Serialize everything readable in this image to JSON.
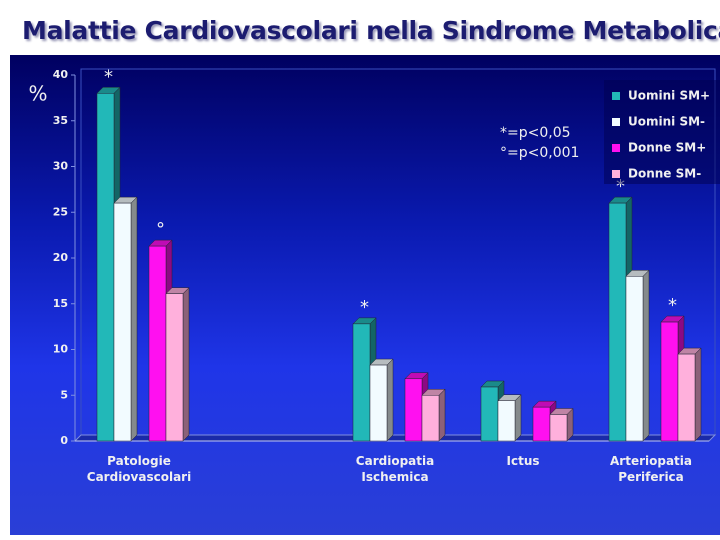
{
  "chart_data": {
    "type": "bar3d",
    "title": "Malattie Cardiovascolari nella Sindrome Metabolica",
    "y_label": "%",
    "categories": [
      "Patologie\nCardiovascolari",
      null,
      "Cardiopatia\nIschemica",
      "Ictus",
      "Arteriopatia\nPeriferica"
    ],
    "series": [
      {
        "name": "Uomini SM+",
        "color": "#22b8b8",
        "values": [
          38,
          null,
          12.8,
          5.9,
          26
        ],
        "annotations": [
          "*",
          null,
          "*",
          null,
          "*"
        ]
      },
      {
        "name": "Uomini SM-",
        "color": "#f2fbff",
        "values": [
          26,
          null,
          8.3,
          4.4,
          18
        ],
        "annotations": [
          null,
          null,
          null,
          null,
          null
        ]
      },
      {
        "name": "Donne SM+",
        "color": "#ff10f0",
        "values": [
          21.3,
          null,
          6.8,
          3.7,
          13
        ],
        "annotations": [
          "°",
          null,
          null,
          null,
          "*"
        ]
      },
      {
        "name": "Donne SM-",
        "color": "#ffb0dc",
        "values": [
          16.1,
          null,
          5,
          2.9,
          9.5
        ],
        "annotations": [
          null,
          null,
          null,
          null,
          null
        ]
      }
    ],
    "notes": [
      "*=p<0,05",
      "°=p<0,001"
    ],
    "ylim": [
      0,
      40
    ],
    "yticks": [
      0,
      5,
      10,
      15,
      20,
      25,
      30,
      35,
      40
    ],
    "legend": "top-right"
  }
}
